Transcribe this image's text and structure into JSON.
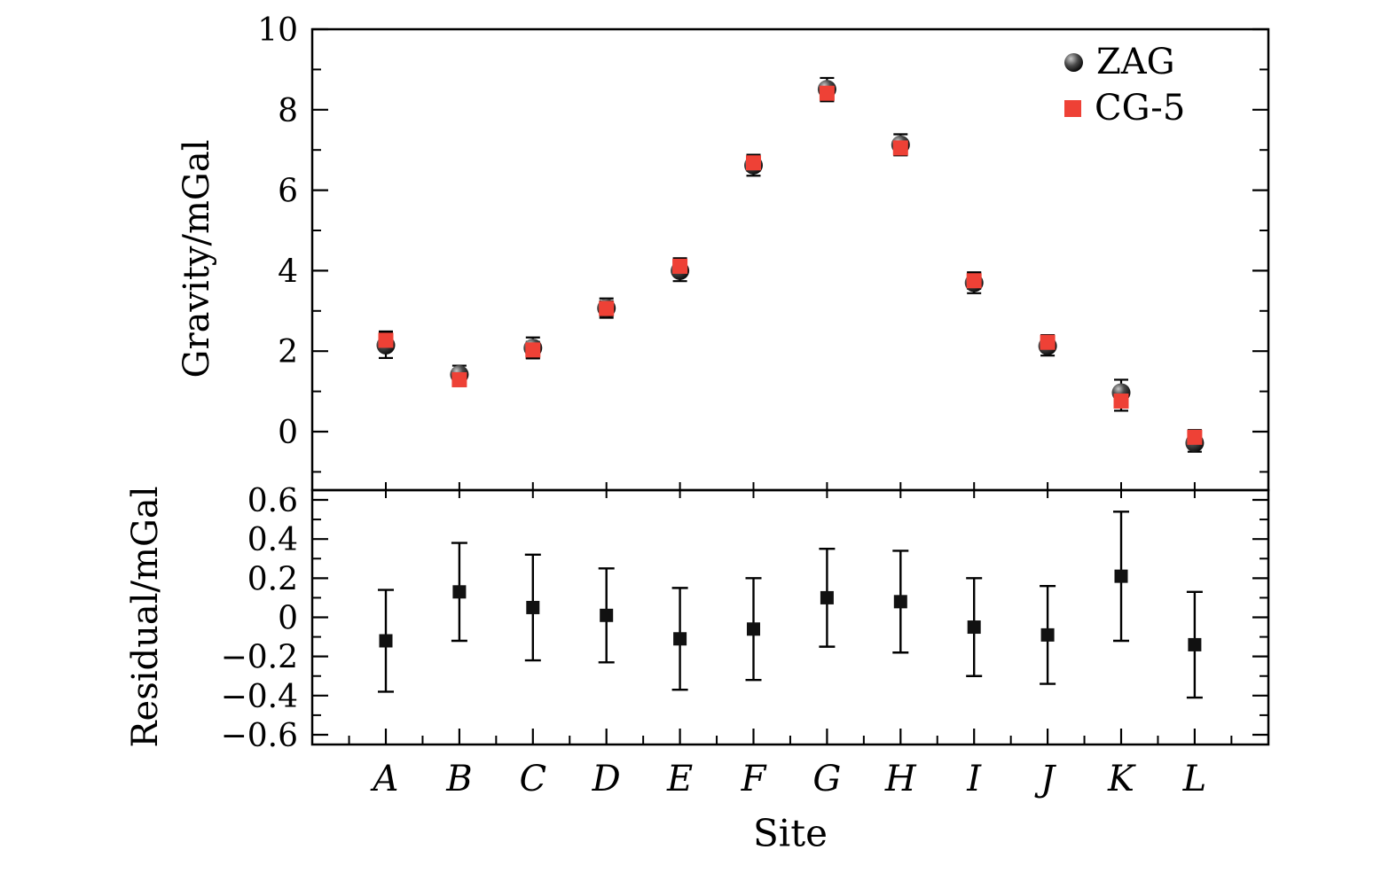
{
  "figure": {
    "background": "#ffffff",
    "axis_color": "#000000"
  },
  "labels": {
    "top_ylabel": "Gravity/mGal",
    "bottom_ylabel": "Residual/mGal",
    "xlabel": "Site"
  },
  "legend": {
    "items": [
      {
        "label": "ZAG",
        "marker": "sphere-icon",
        "color": "#1a1a1a"
      },
      {
        "label": "CG-5",
        "marker": "square-icon",
        "color": "#ee4136"
      }
    ]
  },
  "chart_data": [
    {
      "type": "scatter",
      "panel": "top",
      "ylabel": "Gravity/mGal",
      "ylim": [
        -1.45,
        10
      ],
      "yticks": [
        0,
        2,
        4,
        6,
        8,
        10
      ],
      "ytick_labels": [
        "0",
        "2",
        "4",
        "6",
        "8",
        "10"
      ],
      "grid": false,
      "legend_position": "top-right-inside",
      "categories": [
        "A",
        "B",
        "C",
        "D",
        "E",
        "F",
        "G",
        "H",
        "I",
        "J",
        "K",
        "L"
      ],
      "series": [
        {
          "name": "ZAG",
          "marker": "circle",
          "color": "#111111",
          "values": [
            2.15,
            1.42,
            2.08,
            3.07,
            4.0,
            6.62,
            8.51,
            7.13,
            3.7,
            2.13,
            0.97,
            -0.28
          ],
          "errors": [
            0.32,
            0.22,
            0.26,
            0.24,
            0.26,
            0.26,
            0.28,
            0.26,
            0.26,
            0.24,
            0.32,
            0.22
          ]
        },
        {
          "name": "CG-5",
          "marker": "square",
          "color": "#ee4136",
          "values": [
            2.27,
            1.29,
            2.03,
            3.06,
            4.11,
            6.68,
            8.41,
            7.05,
            3.75,
            2.22,
            0.76,
            -0.14
          ],
          "errors": [
            0.22,
            0.16,
            0.2,
            0.18,
            0.2,
            0.2,
            0.2,
            0.18,
            0.2,
            0.18,
            0.24,
            0.18
          ]
        }
      ]
    },
    {
      "type": "scatter",
      "panel": "bottom",
      "ylabel": "Residual/mGal",
      "xlabel": "Site",
      "ylim": [
        -0.65,
        0.65
      ],
      "yticks": [
        -0.6,
        -0.4,
        -0.2,
        0,
        0.2,
        0.4,
        0.6
      ],
      "ytick_labels": [
        "−0.6",
        "−0.4",
        "−0.2",
        "0",
        "0.2",
        "0.4",
        "0.6"
      ],
      "grid": false,
      "categories": [
        "A",
        "B",
        "C",
        "D",
        "E",
        "F",
        "G",
        "H",
        "I",
        "J",
        "K",
        "L"
      ],
      "series": [
        {
          "name": "Residual",
          "marker": "square",
          "color": "#111111",
          "values": [
            -0.12,
            0.13,
            0.05,
            0.01,
            -0.11,
            -0.06,
            0.1,
            0.08,
            -0.05,
            -0.09,
            0.21,
            -0.14
          ],
          "errors": [
            0.26,
            0.25,
            0.27,
            0.24,
            0.26,
            0.26,
            0.25,
            0.26,
            0.25,
            0.25,
            0.33,
            0.27
          ]
        }
      ]
    }
  ]
}
